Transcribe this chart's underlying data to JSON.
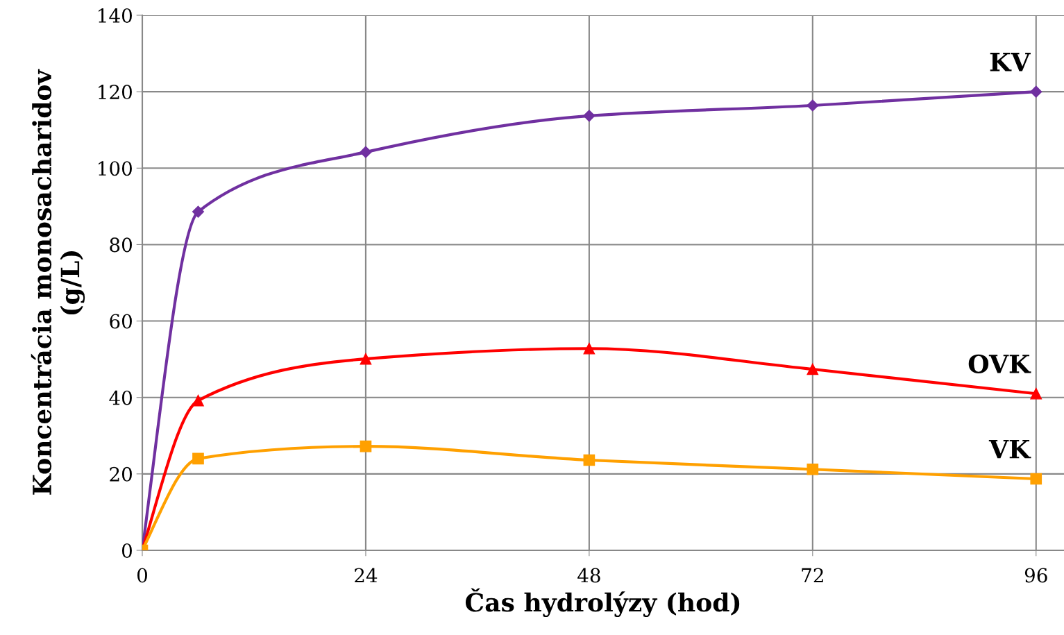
{
  "chart_data": {
    "type": "line",
    "xlabel": "Čas hydrolýzy (hod)",
    "ylabel": "Koncentrácia monosacharidov\n(g/L)",
    "x": [
      0,
      6,
      24,
      48,
      72,
      96
    ],
    "series": [
      {
        "name": "KV",
        "color": "#7030a0",
        "marker": "diamond",
        "values": [
          0,
          88.6,
          104.2,
          113.7,
          116.4,
          120.0
        ]
      },
      {
        "name": "OVK",
        "color": "#ff0000",
        "marker": "triangle",
        "values": [
          0,
          39.2,
          50.1,
          52.8,
          47.4,
          41.0
        ]
      },
      {
        "name": "VK",
        "color": "#ffa000",
        "marker": "square",
        "values": [
          0,
          24.0,
          27.2,
          23.6,
          21.2,
          18.7
        ]
      }
    ],
    "xlim": [
      0,
      99
    ],
    "ylim": [
      0,
      140
    ],
    "xticks": [
      0,
      24,
      48,
      72,
      96
    ],
    "yticks": [
      0,
      20,
      40,
      60,
      80,
      100,
      120,
      140
    ],
    "grid": true,
    "legend": false,
    "line_style": "solid"
  }
}
